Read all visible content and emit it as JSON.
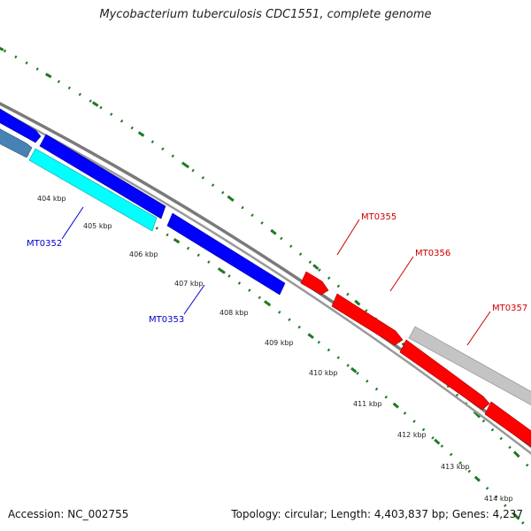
{
  "title": "Mycobacterium tuberculosis CDC1551, complete genome",
  "footer": {
    "accession": "Accession: NC_002755",
    "topology": "Topology: circular; Length: 4,403,837 bp; Genes: 4,237"
  },
  "tick_labels": [
    "404 kbp",
    "405 kbp",
    "406 kbp",
    "407 kbp",
    "408 kbp",
    "409 kbp",
    "410 kbp",
    "411 kbp",
    "412 kbp",
    "413 kbp",
    "414 kbp"
  ],
  "genes": [
    {
      "name": "MT0352",
      "color": "#0000cc"
    },
    {
      "name": "MT0353",
      "color": "#0000cc"
    },
    {
      "name": "MT0355",
      "color": "#cc0000"
    },
    {
      "name": "MT0356",
      "color": "#cc0000"
    },
    {
      "name": "MT0357",
      "color": "#cc0000"
    }
  ],
  "colors": {
    "backbone": "#888888",
    "tick": "#1f7a1f",
    "forward_gene": "#ff0000",
    "reverse_gene": "#0000ff",
    "cyan_gene": "#00ffff",
    "steel_gene": "#4682b4",
    "gray_gene": "#c0c0c0"
  }
}
